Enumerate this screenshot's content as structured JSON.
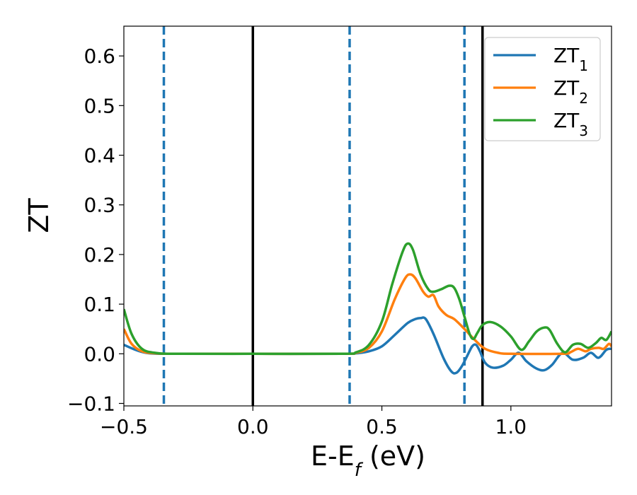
{
  "chart_data": {
    "type": "line",
    "title": "",
    "xlabel": {
      "main": "E-E",
      "sub": "f",
      "unit": " (eV)"
    },
    "ylabel": "ZT",
    "xlim": [
      -0.5,
      1.39
    ],
    "ylim": [
      -0.105,
      0.66
    ],
    "xticks": [
      {
        "value": -0.5,
        "label": "−0.5"
      },
      {
        "value": 0.0,
        "label": "0.0"
      },
      {
        "value": 0.5,
        "label": "0.5"
      },
      {
        "value": 1.0,
        "label": "1.0"
      }
    ],
    "yticks": [
      {
        "value": -0.1,
        "label": "−0.1"
      },
      {
        "value": 0.0,
        "label": "0.0"
      },
      {
        "value": 0.1,
        "label": "0.1"
      },
      {
        "value": 0.2,
        "label": "0.2"
      },
      {
        "value": 0.3,
        "label": "0.3"
      },
      {
        "value": 0.4,
        "label": "0.4"
      },
      {
        "value": 0.5,
        "label": "0.5"
      },
      {
        "value": 0.6,
        "label": "0.6"
      }
    ],
    "grid": false,
    "legend_position": "top-right",
    "vlines": [
      {
        "x": 0.0,
        "style": "solid",
        "color": "#000000"
      },
      {
        "x": 0.89,
        "style": "solid",
        "color": "#000000"
      },
      {
        "x": -0.345,
        "style": "dashed",
        "color": "#1f77b4"
      },
      {
        "x": 0.375,
        "style": "dashed",
        "color": "#1f77b4"
      },
      {
        "x": 0.82,
        "style": "dashed",
        "color": "#1f77b4"
      }
    ],
    "series": [
      {
        "name": "ZT",
        "sub": "1",
        "color": "#1f77b4",
        "points": [
          [
            -0.5,
            0.018
          ],
          [
            -0.45,
            0.007
          ],
          [
            -0.4,
            0.001
          ],
          [
            -0.3,
            0.0
          ],
          [
            0.0,
            0.0
          ],
          [
            0.35,
            0.0
          ],
          [
            0.4,
            0.001
          ],
          [
            0.45,
            0.005
          ],
          [
            0.5,
            0.015
          ],
          [
            0.55,
            0.038
          ],
          [
            0.6,
            0.062
          ],
          [
            0.63,
            0.07
          ],
          [
            0.65,
            0.072
          ],
          [
            0.67,
            0.07
          ],
          [
            0.7,
            0.04
          ],
          [
            0.74,
            -0.01
          ],
          [
            0.77,
            -0.036
          ],
          [
            0.79,
            -0.038
          ],
          [
            0.81,
            -0.025
          ],
          [
            0.83,
            -0.005
          ],
          [
            0.85,
            0.015
          ],
          [
            0.865,
            0.018
          ],
          [
            0.88,
            0.005
          ],
          [
            0.9,
            -0.018
          ],
          [
            0.93,
            -0.028
          ],
          [
            0.97,
            -0.024
          ],
          [
            1.0,
            -0.012
          ],
          [
            1.03,
            0.002
          ],
          [
            1.06,
            -0.015
          ],
          [
            1.1,
            -0.03
          ],
          [
            1.13,
            -0.033
          ],
          [
            1.16,
            -0.022
          ],
          [
            1.2,
            0.002
          ],
          [
            1.24,
            -0.012
          ],
          [
            1.28,
            -0.008
          ],
          [
            1.31,
            0.002
          ],
          [
            1.34,
            -0.008
          ],
          [
            1.37,
            0.008
          ],
          [
            1.39,
            0.01
          ]
        ]
      },
      {
        "name": "ZT",
        "sub": "2",
        "color": "#ff7f0e",
        "points": [
          [
            -0.5,
            0.05
          ],
          [
            -0.47,
            0.02
          ],
          [
            -0.43,
            0.005
          ],
          [
            -0.38,
            0.001
          ],
          [
            -0.3,
            0.0
          ],
          [
            0.0,
            0.0
          ],
          [
            0.35,
            0.0
          ],
          [
            0.4,
            0.002
          ],
          [
            0.45,
            0.012
          ],
          [
            0.5,
            0.045
          ],
          [
            0.55,
            0.11
          ],
          [
            0.59,
            0.152
          ],
          [
            0.61,
            0.16
          ],
          [
            0.63,
            0.152
          ],
          [
            0.66,
            0.125
          ],
          [
            0.68,
            0.115
          ],
          [
            0.7,
            0.118
          ],
          [
            0.72,
            0.095
          ],
          [
            0.75,
            0.078
          ],
          [
            0.78,
            0.07
          ],
          [
            0.82,
            0.05
          ],
          [
            0.86,
            0.028
          ],
          [
            0.9,
            0.01
          ],
          [
            0.95,
            0.002
          ],
          [
            1.0,
            0.0
          ],
          [
            1.2,
            0.0
          ],
          [
            1.23,
            0.003
          ],
          [
            1.26,
            0.01
          ],
          [
            1.29,
            0.005
          ],
          [
            1.31,
            0.01
          ],
          [
            1.34,
            0.012
          ],
          [
            1.36,
            0.01
          ],
          [
            1.38,
            0.02
          ],
          [
            1.39,
            0.015
          ]
        ]
      },
      {
        "name": "ZT",
        "sub": "3",
        "color": "#2ca02c",
        "points": [
          [
            -0.5,
            0.09
          ],
          [
            -0.47,
            0.04
          ],
          [
            -0.43,
            0.01
          ],
          [
            -0.38,
            0.002
          ],
          [
            -0.3,
            0.0
          ],
          [
            0.0,
            0.0
          ],
          [
            0.35,
            0.0
          ],
          [
            0.4,
            0.003
          ],
          [
            0.45,
            0.018
          ],
          [
            0.5,
            0.065
          ],
          [
            0.54,
            0.14
          ],
          [
            0.58,
            0.205
          ],
          [
            0.6,
            0.222
          ],
          [
            0.62,
            0.21
          ],
          [
            0.65,
            0.16
          ],
          [
            0.68,
            0.13
          ],
          [
            0.7,
            0.125
          ],
          [
            0.73,
            0.13
          ],
          [
            0.76,
            0.137
          ],
          [
            0.78,
            0.133
          ],
          [
            0.8,
            0.11
          ],
          [
            0.82,
            0.075
          ],
          [
            0.84,
            0.04
          ],
          [
            0.855,
            0.03
          ],
          [
            0.87,
            0.042
          ],
          [
            0.89,
            0.058
          ],
          [
            0.92,
            0.064
          ],
          [
            0.96,
            0.055
          ],
          [
            1.0,
            0.035
          ],
          [
            1.04,
            0.008
          ],
          [
            1.07,
            0.025
          ],
          [
            1.1,
            0.045
          ],
          [
            1.13,
            0.053
          ],
          [
            1.15,
            0.048
          ],
          [
            1.18,
            0.02
          ],
          [
            1.21,
            0.003
          ],
          [
            1.24,
            0.018
          ],
          [
            1.27,
            0.02
          ],
          [
            1.3,
            0.012
          ],
          [
            1.33,
            0.022
          ],
          [
            1.35,
            0.032
          ],
          [
            1.37,
            0.028
          ],
          [
            1.39,
            0.045
          ]
        ]
      }
    ]
  }
}
